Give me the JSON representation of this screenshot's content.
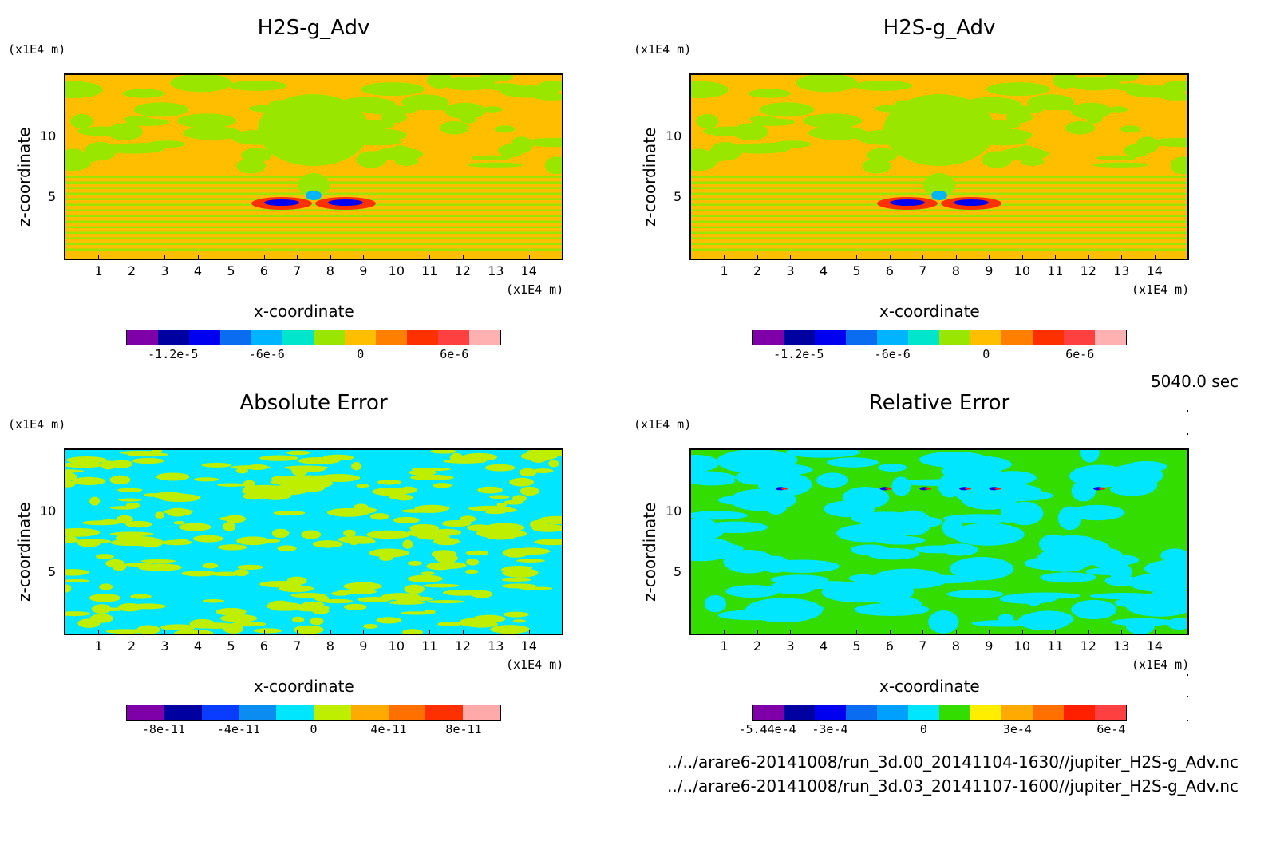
{
  "time_label": "5040.0 sec",
  "files": [
    "../../arare6-20141008/run_3d.00_20141104-1630//jupiter_H2S-g_Adv.nc",
    "../../arare6-20141008/run_3d.03_20141107-1600//jupiter_H2S-g_Adv.nc"
  ],
  "chart_data": [
    {
      "type": "heatmap",
      "title": "H2S-g_Adv",
      "xlabel": "x-coordinate",
      "ylabel": "z-coordinate",
      "x_unit": "(x1E4 m)",
      "y_unit": "(x1E4 m)",
      "x_ticks": [
        "1",
        "2",
        "3",
        "4",
        "5",
        "6",
        "7",
        "8",
        "9",
        "10",
        "11",
        "12",
        "13",
        "14"
      ],
      "y_ticks": [
        "10",
        "5"
      ],
      "xlim": [
        0,
        15
      ],
      "ylim": [
        0,
        15
      ],
      "colorbar": {
        "colors": [
          "#7f00a8",
          "#0000a0",
          "#0000f0",
          "#0a6cf0",
          "#00b4ff",
          "#00e6cc",
          "#99e600",
          "#ffbf00",
          "#ff7f00",
          "#ff3000",
          "#ff4040",
          "#ffb0b0"
        ],
        "labels": [
          "-1.2e-5",
          "-6e-6",
          "0",
          "6e-6"
        ],
        "label_positions": [
          1.5,
          4.5,
          7.5,
          10.5
        ]
      },
      "background": "#ffbf00",
      "features": "orange/green banded field with blue/red anomaly near z=4.5 at x~7.5"
    },
    {
      "type": "heatmap",
      "title": "H2S-g_Adv",
      "xlabel": "x-coordinate",
      "ylabel": "z-coordinate",
      "x_unit": "(x1E4 m)",
      "y_unit": "(x1E4 m)",
      "x_ticks": [
        "1",
        "2",
        "3",
        "4",
        "5",
        "6",
        "7",
        "8",
        "9",
        "10",
        "11",
        "12",
        "13",
        "14"
      ],
      "y_ticks": [
        "10",
        "5"
      ],
      "xlim": [
        0,
        15
      ],
      "ylim": [
        0,
        15
      ],
      "colorbar": {
        "colors": [
          "#7f00a8",
          "#0000a0",
          "#0000f0",
          "#0a6cf0",
          "#00b4ff",
          "#00e6cc",
          "#99e600",
          "#ffbf00",
          "#ff7f00",
          "#ff3000",
          "#ff4040",
          "#ffb0b0"
        ],
        "labels": [
          "-1.2e-5",
          "-6e-6",
          "0",
          "6e-6"
        ],
        "label_positions": [
          1.5,
          4.5,
          7.5,
          10.5
        ]
      },
      "background": "#ffbf00",
      "features": "identical to first panel"
    },
    {
      "type": "heatmap",
      "title": "Absolute Error",
      "xlabel": "x-coordinate",
      "ylabel": "z-coordinate",
      "x_unit": "(x1E4 m)",
      "y_unit": "(x1E4 m)",
      "x_ticks": [
        "1",
        "2",
        "3",
        "4",
        "5",
        "6",
        "7",
        "8",
        "9",
        "10",
        "11",
        "12",
        "13",
        "14"
      ],
      "y_ticks": [
        "10",
        "5"
      ],
      "xlim": [
        0,
        15
      ],
      "ylim": [
        0,
        15
      ],
      "colorbar": {
        "colors": [
          "#7f00a8",
          "#0000a0",
          "#0a3cff",
          "#0a8cf0",
          "#00e6ff",
          "#bfef00",
          "#ffaa00",
          "#ff7000",
          "#ff3000",
          "#ffaaaa"
        ],
        "labels": [
          "-8e-11",
          "-4e-11",
          "0",
          "4e-11",
          "8e-11"
        ],
        "label_positions": [
          1,
          3,
          5,
          7,
          9
        ]
      },
      "background": "#00e6ff",
      "features": "cyan / yellow-green noise pattern"
    },
    {
      "type": "heatmap",
      "title": "Relative Error",
      "xlabel": "x-coordinate",
      "ylabel": "z-coordinate",
      "x_unit": "(x1E4 m)",
      "y_unit": "(x1E4 m)",
      "x_ticks": [
        "1",
        "2",
        "3",
        "4",
        "5",
        "6",
        "7",
        "8",
        "9",
        "10",
        "11",
        "12",
        "13",
        "14"
      ],
      "y_ticks": [
        "10",
        "5"
      ],
      "xlim": [
        0,
        15
      ],
      "ylim": [
        0,
        15
      ],
      "colorbar": {
        "colors": [
          "#7f00a8",
          "#0000a0",
          "#0000f0",
          "#0a6cf0",
          "#00a0ff",
          "#00e6ff",
          "#33dd00",
          "#ffee00",
          "#ffaa00",
          "#ff7000",
          "#ff2000",
          "#ff4040"
        ],
        "labels": [
          "-5.44e-4",
          "-3e-4",
          "0",
          "3e-4",
          "6e-4"
        ],
        "label_positions": [
          0.5,
          2.5,
          5.5,
          8.5,
          11.5
        ]
      },
      "background": "#33dd00",
      "features": "green / cyan field with small blue-red spots near z=12.5"
    }
  ]
}
